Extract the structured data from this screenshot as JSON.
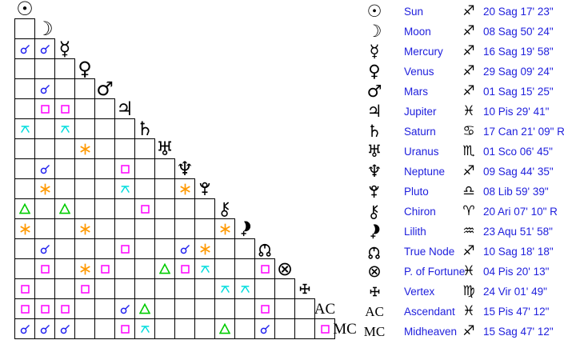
{
  "colors": {
    "background": "#ffffff",
    "grid_line": "#000000",
    "glyph_black": "#000000",
    "text_blue": "#2020dd",
    "conjunction": "#2222ee",
    "square": "#ff00ff",
    "trine": "#00cc00",
    "sextile": "#ff9900",
    "quincunx": "#00dddd"
  },
  "planets": [
    {
      "name": "Sun",
      "icon": "sun",
      "sign_icon": "sagittarius",
      "position": "20 Sag 17' 23\""
    },
    {
      "name": "Moon",
      "icon": "moon",
      "sign_icon": "sagittarius",
      "position": "08 Sag 50' 24\""
    },
    {
      "name": "Mercury",
      "icon": "mercury",
      "sign_icon": "sagittarius",
      "position": "16 Sag 19' 58\""
    },
    {
      "name": "Venus",
      "icon": "venus",
      "sign_icon": "sagittarius",
      "position": "29 Sag 09' 24\""
    },
    {
      "name": "Mars",
      "icon": "mars",
      "sign_icon": "sagittarius",
      "position": "01 Sag 15' 25\""
    },
    {
      "name": "Jupiter",
      "icon": "jupiter",
      "sign_icon": "pisces",
      "position": "10 Pis 29' 41\""
    },
    {
      "name": "Saturn",
      "icon": "saturn",
      "sign_icon": "cancer",
      "position": "17 Can 21' 09\" R"
    },
    {
      "name": "Uranus",
      "icon": "uranus",
      "sign_icon": "scorpio",
      "position": "01 Sco 06' 45\""
    },
    {
      "name": "Neptune",
      "icon": "neptune",
      "sign_icon": "sagittarius",
      "position": "09 Sag 44' 35\""
    },
    {
      "name": "Pluto",
      "icon": "pluto",
      "sign_icon": "libra",
      "position": "08 Lib 59' 39\""
    },
    {
      "name": "Chiron",
      "icon": "chiron",
      "sign_icon": "aries",
      "position": "20 Ari 07' 10\" R"
    },
    {
      "name": "Lilith",
      "icon": "lilith",
      "sign_icon": "aquarius",
      "position": "23 Aqu 51' 58\""
    },
    {
      "name": "True Node",
      "icon": "true-node",
      "sign_icon": "sagittarius",
      "position": "10 Sag 18' 18\""
    },
    {
      "name": "P. of Fortune",
      "icon": "part-of-fortune",
      "sign_icon": "pisces",
      "position": "04 Pis 20' 13\""
    },
    {
      "name": "Vertex",
      "icon": "vertex",
      "sign_icon": "virgo",
      "position": "24 Vir 01' 49\""
    },
    {
      "name": "Ascendant",
      "icon": "ascendant",
      "sign_icon": "pisces",
      "position": "15 Pis 47' 12\""
    },
    {
      "name": "Midheaven",
      "icon": "midheaven",
      "sign_icon": "sagittarius",
      "position": "15 Sag 47' 12\""
    }
  ],
  "aspects": [
    {
      "row": 2,
      "col": 0,
      "type": "conjunction"
    },
    {
      "row": 2,
      "col": 1,
      "type": "conjunction"
    },
    {
      "row": 4,
      "col": 1,
      "type": "conjunction"
    },
    {
      "row": 5,
      "col": 1,
      "type": "square"
    },
    {
      "row": 5,
      "col": 2,
      "type": "square"
    },
    {
      "row": 6,
      "col": 0,
      "type": "quincunx"
    },
    {
      "row": 6,
      "col": 2,
      "type": "quincunx"
    },
    {
      "row": 7,
      "col": 3,
      "type": "sextile"
    },
    {
      "row": 8,
      "col": 1,
      "type": "conjunction"
    },
    {
      "row": 8,
      "col": 5,
      "type": "square"
    },
    {
      "row": 9,
      "col": 1,
      "type": "sextile"
    },
    {
      "row": 9,
      "col": 5,
      "type": "quincunx"
    },
    {
      "row": 9,
      "col": 8,
      "type": "sextile"
    },
    {
      "row": 10,
      "col": 0,
      "type": "trine"
    },
    {
      "row": 10,
      "col": 2,
      "type": "trine"
    },
    {
      "row": 10,
      "col": 6,
      "type": "square"
    },
    {
      "row": 11,
      "col": 0,
      "type": "sextile"
    },
    {
      "row": 11,
      "col": 3,
      "type": "sextile"
    },
    {
      "row": 11,
      "col": 10,
      "type": "sextile"
    },
    {
      "row": 12,
      "col": 1,
      "type": "conjunction"
    },
    {
      "row": 12,
      "col": 5,
      "type": "square"
    },
    {
      "row": 12,
      "col": 8,
      "type": "conjunction"
    },
    {
      "row": 12,
      "col": 9,
      "type": "sextile"
    },
    {
      "row": 13,
      "col": 1,
      "type": "square"
    },
    {
      "row": 13,
      "col": 3,
      "type": "sextile"
    },
    {
      "row": 13,
      "col": 4,
      "type": "square"
    },
    {
      "row": 13,
      "col": 7,
      "type": "trine"
    },
    {
      "row": 13,
      "col": 8,
      "type": "square"
    },
    {
      "row": 13,
      "col": 9,
      "type": "quincunx"
    },
    {
      "row": 13,
      "col": 12,
      "type": "square"
    },
    {
      "row": 14,
      "col": 0,
      "type": "square"
    },
    {
      "row": 14,
      "col": 3,
      "type": "square"
    },
    {
      "row": 14,
      "col": 10,
      "type": "quincunx"
    },
    {
      "row": 14,
      "col": 11,
      "type": "quincunx"
    },
    {
      "row": 15,
      "col": 0,
      "type": "square"
    },
    {
      "row": 15,
      "col": 1,
      "type": "square"
    },
    {
      "row": 15,
      "col": 2,
      "type": "square"
    },
    {
      "row": 15,
      "col": 5,
      "type": "conjunction"
    },
    {
      "row": 15,
      "col": 6,
      "type": "trine"
    },
    {
      "row": 15,
      "col": 12,
      "type": "square"
    },
    {
      "row": 16,
      "col": 0,
      "type": "conjunction"
    },
    {
      "row": 16,
      "col": 1,
      "type": "conjunction"
    },
    {
      "row": 16,
      "col": 2,
      "type": "conjunction"
    },
    {
      "row": 16,
      "col": 5,
      "type": "square"
    },
    {
      "row": 16,
      "col": 6,
      "type": "quincunx"
    },
    {
      "row": 16,
      "col": 10,
      "type": "trine"
    },
    {
      "row": 16,
      "col": 12,
      "type": "conjunction"
    },
    {
      "row": 16,
      "col": 15,
      "type": "square"
    }
  ]
}
